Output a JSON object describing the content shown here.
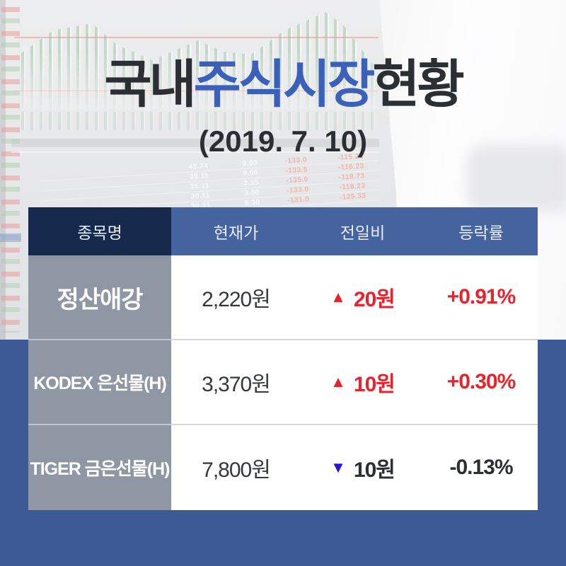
{
  "title": {
    "part_domestic": "국내",
    "part_stock_market": "주식시장",
    "part_status": "현황",
    "date": "(2019. 7. 10)"
  },
  "table": {
    "columns": {
      "name": "종목명",
      "price": "현재가",
      "change": "전일비",
      "rate": "등락률"
    },
    "rows": [
      {
        "name": "정산애강",
        "price": "2,220원",
        "arrow": "▲",
        "change": "20원",
        "pct": "+0.91%",
        "direction": "up"
      },
      {
        "name": "KODEX 은선물(H)",
        "price": "3,370원",
        "arrow": "▲",
        "change": "10원",
        "pct": "+0.30%",
        "direction": "up"
      },
      {
        "name": "TIGER 금은선물(H)",
        "price": "7,800원",
        "arrow": "▼",
        "change": "10원",
        "pct": "-0.13%",
        "direction": "down"
      }
    ]
  },
  "chart_data": {
    "type": "table",
    "title": "국내주식시장현황",
    "date": "2019.7.10",
    "columns": [
      "종목명",
      "현재가",
      "전일비",
      "등락률"
    ],
    "rows": [
      [
        "정산애강",
        "2,220원",
        "▲ 20원",
        "+0.91%"
      ],
      [
        "KODEX 은선물(H)",
        "3,370원",
        "▲ 10원",
        "+0.30%"
      ],
      [
        "TIGER 금은선물(H)",
        "7,800원",
        "▼ 10원",
        "-0.13%"
      ]
    ]
  },
  "backdrop": {
    "rows": [
      [
        "45.74",
        "0.00",
        "-133.0",
        "-115.23"
      ],
      [
        "30.11",
        "0.00",
        "-133.5",
        "-116.23"
      ],
      [
        "35.11",
        "2.35",
        "-135.0",
        "-118.73"
      ],
      [
        "20.11",
        "3.30",
        "-133.0",
        "-118.23"
      ],
      [
        "30.31",
        "5.30",
        "-131.0",
        "-125.33"
      ]
    ]
  },
  "colors": {
    "accent_blue": "#3a60ba",
    "header_navy": "#16294d",
    "header_blue": "#44639f",
    "bg_blue": "#3e5a96",
    "name_gray": "#8f96a4",
    "up_red": "#e8232b",
    "down_blue": "#2417e0",
    "text_dark": "#2b2e33"
  }
}
